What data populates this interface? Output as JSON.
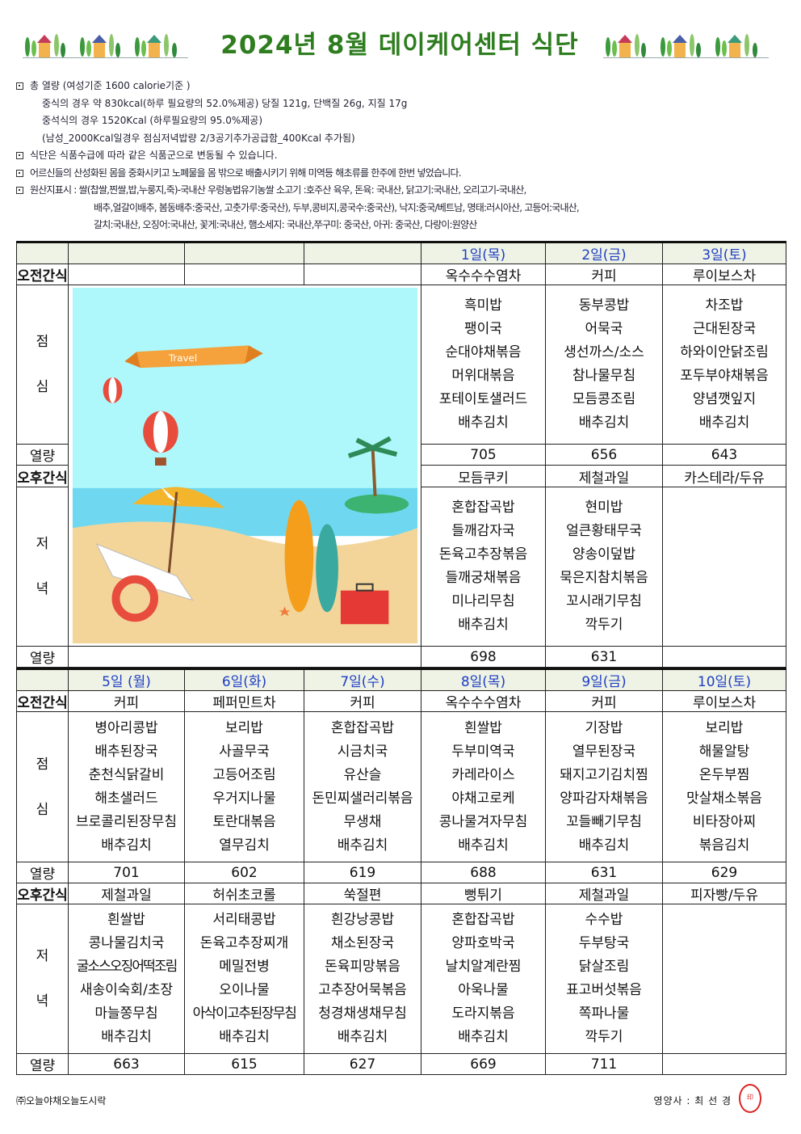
{
  "title": "2024년 8월 데이케어센터 식단",
  "notes": {
    "line1": "총 열량 (여성기준 1600 calorie기준 )",
    "line2": "중식의 경우 약 830kcal(하루 필요량의 52.0%제공) 당질 121g, 단백질 26g, 지질 17g",
    "line3": "중석식의 경우 1520Kcal (하루필요량의 95.0%제공)",
    "line4": "(남성_2000Kcal일경우 점심저녁밥량 2/3공기추가공급함_400Kcal 추가됨)",
    "line5": "식단은 식품수급에 따라 같은 식품군으로 변동될 수 있습니다.",
    "line6": "어르신들의 산성화된 몸을 중화시키고 노폐물을 몸 밖으로 배출시키기 위해 미역등 해초류를 한주에 한번 넣었습니다.",
    "line7": "원산지표시 : 쌀(찹쌀,찐쌀,밥,누룽지,죽)-국내산 우렁농법유기농쌀   소고기 :호주산 육우, 돈육: 국내산, 닭고기:국내산,        오리고기-국내산,",
    "line8": "배추,얼갈이배추, 봄동배추:중국산, 고춧가루:중국산), 두부,콩비지,콩국수:중국산), 낙지:중국/베트남, 명태:러시아산, 고등어:국내산,",
    "line9": "갈치:국내산,   오징어:국내산, 꽃게:국내산, 햄소세지: 국내산,쭈구미:  중국산, 아귀:  중국산, 다랑이:원양산"
  },
  "labels": {
    "snack_am": "오전간식",
    "lunch": [
      "점",
      "심"
    ],
    "kcal": "열량",
    "snack_pm": "오후간식",
    "dinner": [
      "저",
      "녁"
    ]
  },
  "weeks": [
    {
      "days": [
        {
          "date": "",
          "snack_am": "",
          "lunch": [],
          "lunch_kcal": "",
          "snack_pm": "",
          "dinner": [],
          "dinner_kcal": ""
        },
        {
          "date": "",
          "snack_am": "",
          "lunch": [],
          "lunch_kcal": "",
          "snack_pm": "",
          "dinner": [],
          "dinner_kcal": ""
        },
        {
          "date": "",
          "snack_am": "",
          "lunch": [],
          "lunch_kcal": "",
          "snack_pm": "",
          "dinner": [],
          "dinner_kcal": ""
        },
        {
          "date": "1일(목)",
          "snack_am": "옥수수수염차",
          "lunch": [
            "흑미밥",
            "팽이국",
            "순대야채볶음",
            "머위대볶음",
            "포테이토샐러드",
            "배추김치"
          ],
          "lunch_kcal": "705",
          "snack_pm": "모듬쿠키",
          "dinner": [
            "혼합잡곡밥",
            "들깨감자국",
            "돈육고추장볶음",
            "들깨궁채볶음",
            "미나리무침",
            "배추김치"
          ],
          "dinner_kcal": "698"
        },
        {
          "date": "2일(금)",
          "snack_am": "커피",
          "lunch": [
            "동부콩밥",
            "어묵국",
            "생선까스/소스",
            "참나물무침",
            "모듬콩조림",
            "배추김치"
          ],
          "lunch_kcal": "656",
          "snack_pm": "제철과일",
          "dinner": [
            "현미밥",
            "얼큰황태무국",
            "양송이덮밥",
            "묵은지참치볶음",
            "꼬시래기무침",
            "깍두기"
          ],
          "dinner_kcal": "631"
        },
        {
          "date": "3일(토)",
          "snack_am": "루이보스차",
          "lunch": [
            "차조밥",
            "근대된장국",
            "하와이안닭조림",
            "포두부야채볶음",
            "양념깻잎지",
            "배추김치"
          ],
          "lunch_kcal": "643",
          "snack_pm": "카스테라/두유",
          "dinner": [],
          "dinner_kcal": ""
        }
      ]
    },
    {
      "days": [
        {
          "date": "5일 (월)",
          "snack_am": "커피",
          "lunch": [
            "병아리콩밥",
            "배추된장국",
            "춘천식닭갈비",
            "해초샐러드",
            "브로콜리된장무침",
            "배추김치"
          ],
          "lunch_kcal": "701",
          "snack_pm": "제철과일",
          "dinner": [
            "흰쌀밥",
            "콩나물김치국",
            "굴소스오징어떡조림",
            "새송이숙회/초장",
            "마늘쫑무침",
            "배추김치"
          ],
          "dinner_kcal": "663"
        },
        {
          "date": "6일(화)",
          "snack_am": "페퍼민트차",
          "lunch": [
            "보리밥",
            "사골무국",
            "고등어조림",
            "우거지나물",
            "토란대볶음",
            "열무김치"
          ],
          "lunch_kcal": "602",
          "snack_pm": "허쉬초코롤",
          "dinner": [
            "서리태콩밥",
            "돈육고추장찌개",
            "메밀전병",
            "오이나물",
            "아삭이고추된장무침",
            "배추김치"
          ],
          "dinner_kcal": "615"
        },
        {
          "date": "7일(수)",
          "snack_am": "커피",
          "lunch": [
            "혼합잡곡밥",
            "시금치국",
            "유산슬",
            "돈민찌샐러리볶음",
            "무생채",
            "배추김치"
          ],
          "lunch_kcal": "619",
          "snack_pm": "쑥절편",
          "dinner": [
            "흰강낭콩밥",
            "채소된장국",
            "돈육피망볶음",
            "고추장어묵볶음",
            "청경채생채무침",
            "배추김치"
          ],
          "dinner_kcal": "627"
        },
        {
          "date": "8일(목)",
          "snack_am": "옥수수수염차",
          "lunch": [
            "흰쌀밥",
            "두부미역국",
            "카레라이스",
            "야채고로케",
            "콩나물겨자무침",
            "배추김치"
          ],
          "lunch_kcal": "688",
          "snack_pm": "뻥튀기",
          "dinner": [
            "혼합잡곡밥",
            "양파호박국",
            "날치알계란찜",
            "아욱나물",
            "도라지볶음",
            "배추김치"
          ],
          "dinner_kcal": "669"
        },
        {
          "date": "9일(금)",
          "snack_am": "커피",
          "lunch": [
            "기장밥",
            "열무된장국",
            "돼지고기김치찜",
            "양파감자채볶음",
            "꼬들빼기무침",
            "배추김치"
          ],
          "lunch_kcal": "631",
          "snack_pm": "제철과일",
          "dinner": [
            "수수밥",
            "두부탕국",
            "닭살조림",
            "표고버섯볶음",
            "쪽파나물",
            "깍두기"
          ],
          "dinner_kcal": "711"
        },
        {
          "date": "10일(토)",
          "snack_am": "루이보스차",
          "lunch": [
            "보리밥",
            "해물알탕",
            "온두부찜",
            "맛살채소볶음",
            "비타장아찌",
            "볶음김치"
          ],
          "lunch_kcal": "629",
          "snack_pm": "피자빵/두유",
          "dinner": [],
          "dinner_kcal": ""
        }
      ]
    }
  ],
  "illustration": {
    "banner_text": "Travel"
  },
  "footer": {
    "company": "㈜오늘야채오늘도시락",
    "dietitian": "영양사 : 최 선 경",
    "seal_text": "최선경인"
  },
  "colors": {
    "title": "#2e7d1f",
    "date": "#1f3ec4",
    "header_bg": "#eef3e5"
  }
}
